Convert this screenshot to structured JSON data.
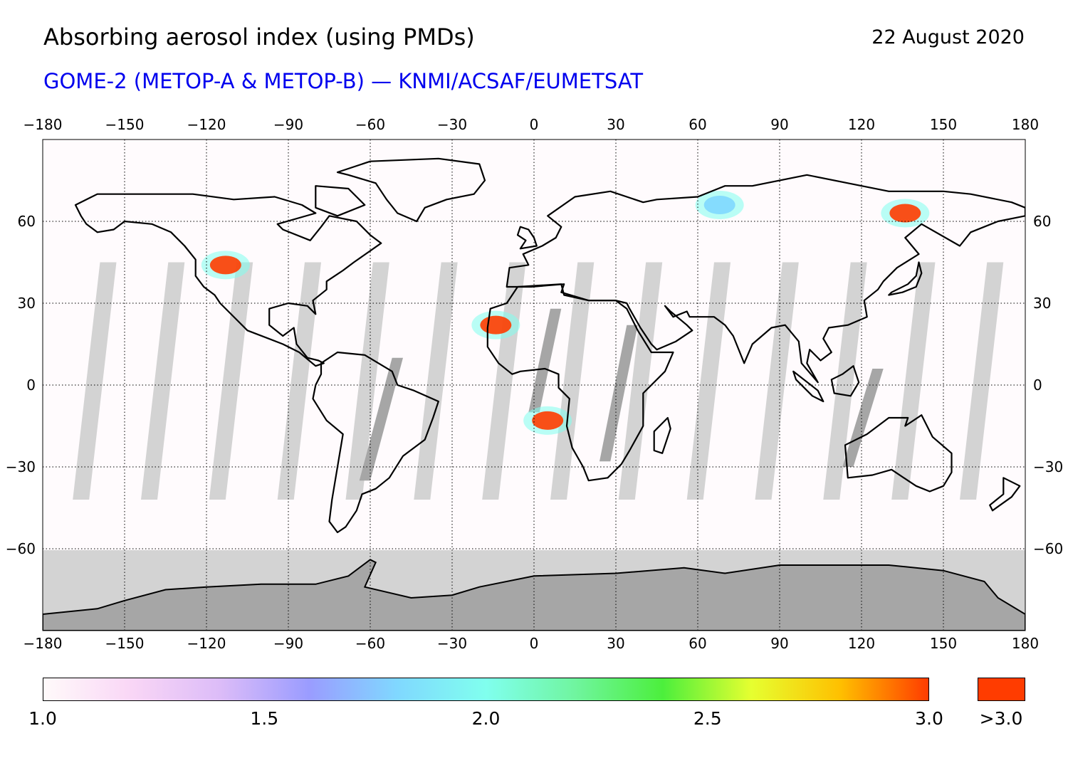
{
  "header": {
    "title": "Absorbing aerosol index (using PMDs)",
    "date": "22 August 2020",
    "subtitle": "GOME-2 (METOP-A & METOP-B) — KNMI/ACSAF/EUMETSAT"
  },
  "map": {
    "projection": "equirectangular",
    "lon_range": [
      -180,
      180
    ],
    "lat_range": [
      -90,
      90
    ],
    "lon_ticks": [
      "−180",
      "−150",
      "−120",
      "−90",
      "−60",
      "−30",
      "0",
      "30",
      "60",
      "90",
      "120",
      "150",
      "180"
    ],
    "lon_tick_values": [
      -180,
      -150,
      -120,
      -90,
      -60,
      -30,
      0,
      30,
      60,
      90,
      120,
      150,
      180
    ],
    "lat_ticks": [
      "60",
      "30",
      "0",
      "−30",
      "−60"
    ],
    "lat_tick_values": [
      60,
      30,
      0,
      -30,
      -60
    ],
    "grid": "dotted",
    "colors": {
      "background": "#fffbfd",
      "coastline": "#000000",
      "no_data_light": "#d3d3d3",
      "no_data_dark": "#a6a6a6",
      "aerosol_high": "#ff3c00"
    },
    "aerosol_plumes": [
      {
        "region": "western North America",
        "lon": -113,
        "lat": 44,
        "intensity": "high"
      },
      {
        "region": "western Sahara / Atlantic",
        "lon": -14,
        "lat": 22,
        "intensity": "high"
      },
      {
        "region": "southern Africa",
        "lon": 5,
        "lat": -13,
        "intensity": "high"
      },
      {
        "region": "West Siberia",
        "lon": 68,
        "lat": 66,
        "intensity": "medium"
      },
      {
        "region": "East Siberia",
        "lon": 136,
        "lat": 63,
        "intensity": "high"
      }
    ]
  },
  "colorbar": {
    "labels": [
      "1.0",
      "1.5",
      "2.0",
      "2.5",
      "3.0"
    ],
    "values": [
      1.0,
      1.5,
      2.0,
      2.5,
      3.0
    ],
    "over_label": ">3.0",
    "over_color": "#ff3c00",
    "gradient_colors": [
      "#fffafa",
      "#f9d6f6",
      "#dcbcf8",
      "#9a9cff",
      "#80d8ff",
      "#80ffee",
      "#70f5a0",
      "#4cef3c",
      "#e6ff30",
      "#ffc000",
      "#ff3c00"
    ]
  }
}
